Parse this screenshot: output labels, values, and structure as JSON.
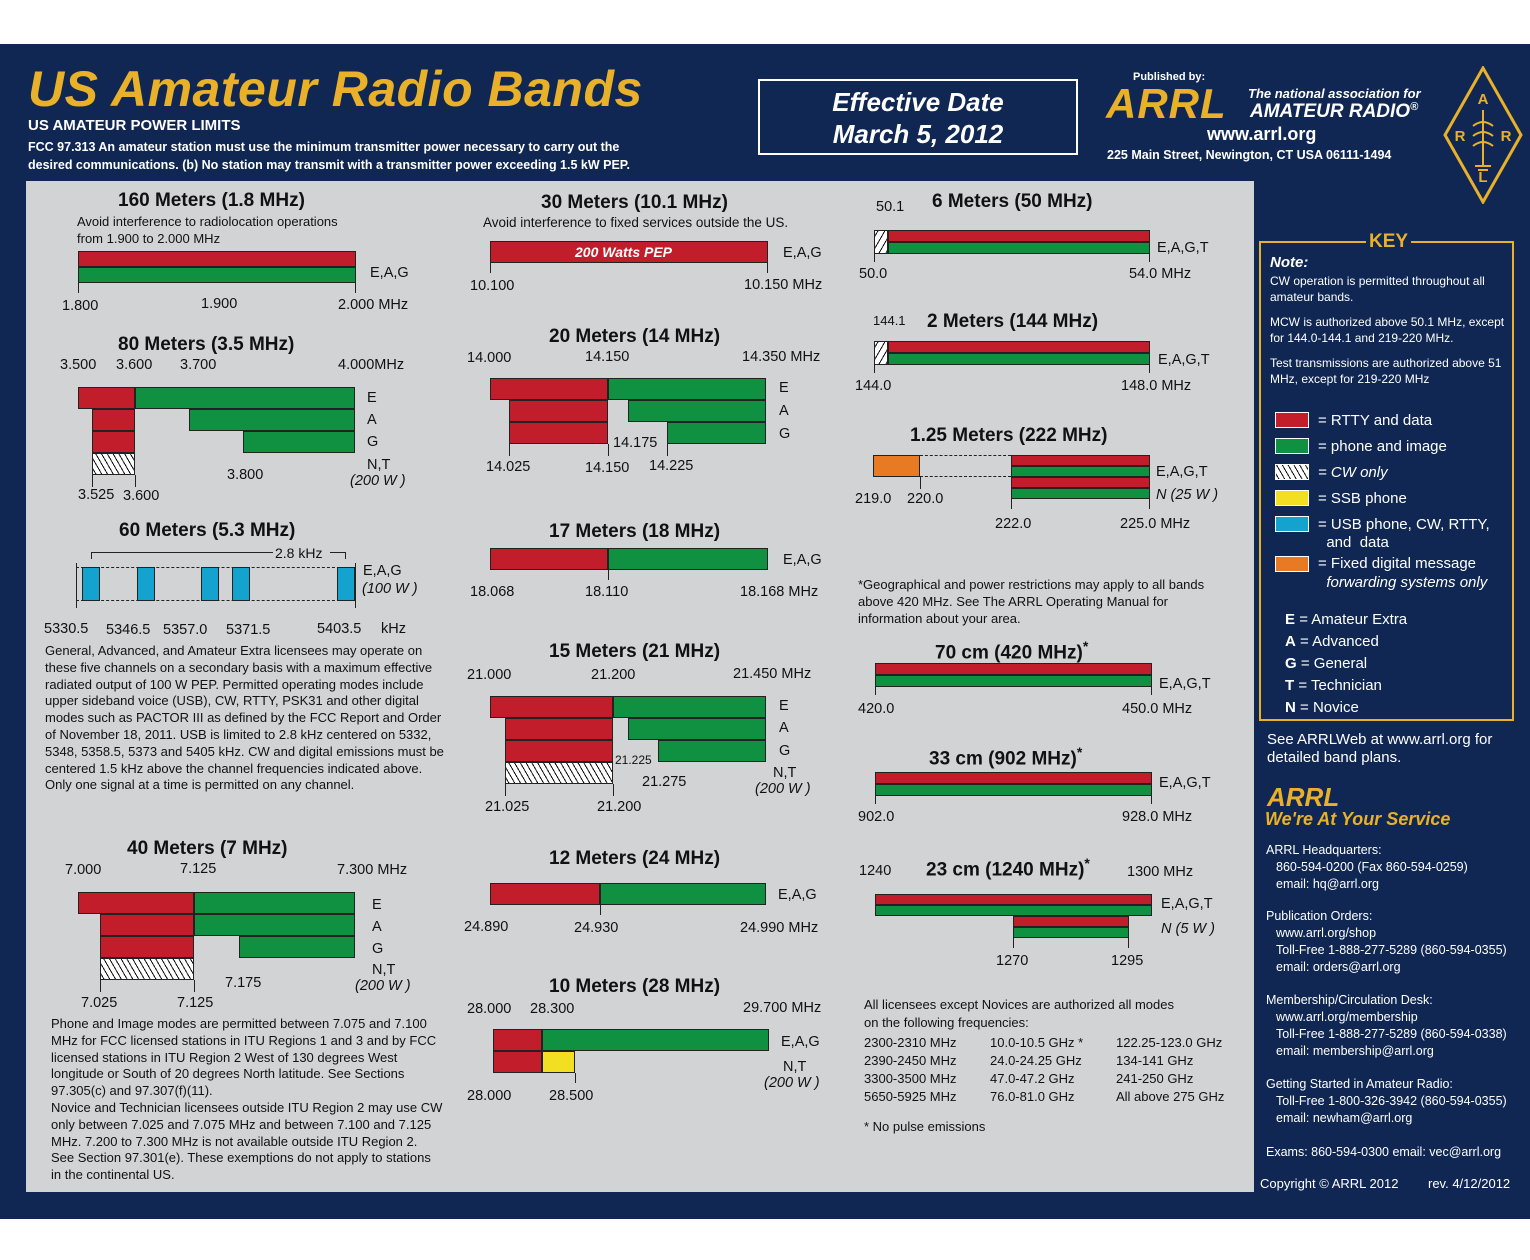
{
  "header": {
    "title": "US Amateur Radio Bands",
    "power_title": "US AMATEUR POWER LIMITS",
    "fcc_line1": "FCC 97.313   An amateur station must use the minimum transmitter power necessary to carry out the",
    "fcc_line2": "desired communications.   (b) No station may transmit with a transmitter power exceeding 1.5 kW PEP.",
    "effective_label": "Effective Date",
    "effective_date": "March 5, 2012",
    "published_by": "Published by:",
    "logo": "ARRL",
    "tagline1": "The national association for",
    "tagline2": "AMATEUR RADIO",
    "reg": "®",
    "url": "www.arrl.org",
    "address": "225 Main Street, Newington, CT  USA  06111-1494",
    "diamond_letters": [
      "A",
      "R",
      "R",
      "L"
    ]
  },
  "colors": {
    "navy": "#0f2752",
    "gold": "#e9b12a",
    "red": "#c11d2b",
    "green": "#0f9141",
    "orange": "#e77a22",
    "yellow": "#f2df22",
    "cyan": "#14a3cf",
    "panel": "#d2d3d5"
  },
  "bands": {
    "b160": {
      "title": "160 Meters (1.8 MHz)",
      "note1": "Avoid interference to radiolocation operations",
      "note2": "from 1.900 to 2.000 MHz",
      "lic": "E,A,G",
      "f1": "1.800",
      "f2": "1.900",
      "f3": "2.000",
      "unit": "MHz"
    },
    "b80": {
      "title": "80 Meters (3.5 MHz)",
      "f1": "3.500",
      "f2": "3.600",
      "f3": "3.700",
      "f4": "4.000",
      "unit": "MHz",
      "e": "E",
      "a": "A",
      "g": "G",
      "nt": "N,T",
      "nt_pow": "(200 W )",
      "b1": "3.800",
      "b2": "3.525",
      "b3": "3.600"
    },
    "b60": {
      "title": "60 Meters (5.3 MHz)",
      "bw": "2.8 kHz",
      "lic": "E,A,G",
      "pow": "(100 W )",
      "c1": "5330.5",
      "c2": "5346.5",
      "c3": "5357.0",
      "c4": "5371.5",
      "c5": "5403.5",
      "unit": "kHz",
      "text": "General, Advanced, and Amateur Extra licensees may operate on these five channels on a secondary basis with a maximum effective radiated output of 100 W PEP. Permitted operating modes include upper sideband voice (USB), CW, RTTY, PSK31 and other digital modes such as PACTOR III as defined by the FCC Report and Order of November 18, 2011. USB is limited to 2.8 kHz centered on 5332, 5348, 5358.5, 5373 and 5405 kHz. CW and digital emissions must be centered 1.5 kHz above the channel frequencies indicated above. Only one signal at a time is permitted on any channel."
    },
    "b40": {
      "title": "40 Meters (7 MHz)",
      "f1": "7.000",
      "f2": "7.125",
      "f3": "7.300",
      "unit": "MHz",
      "e": "E",
      "a": "A",
      "g": "G",
      "nt": "N,T",
      "nt_pow": "(200 W )",
      "b1": "7.175",
      "b2": "7.025",
      "b3": "7.125",
      "text1": "Phone and Image modes are permitted between 7.075 and 7.100 MHz for FCC licensed stations in ITU Regions 1 and 3 and by FCC licensed stations in ITU Region 2 West of 130 degrees West longitude or South of 20 degrees North latitude. See Sections 97.305(c) and 97.307(f)(11).",
      "text2": "Novice and Technician  licensees outside ITU Region 2 may use CW only between 7.025 and 7.075 MHz and between 7.100 and 7.125 MHz. 7.200 to 7.300 MHz is not available outside ITU Region 2. See Section 97.301(e). These exemptions do not apply to stations in the continental US."
    },
    "b30": {
      "title": "30 Meters (10.1 MHz)",
      "note": "Avoid interference to fixed services outside the US.",
      "pep": "200 Watts PEP",
      "lic": "E,A,G",
      "f1": "10.100",
      "f2": "10.150",
      "unit": "MHz"
    },
    "b20": {
      "title": "20 Meters (14 MHz)",
      "f1": "14.000",
      "f2": "14.150",
      "f3": "14.350",
      "unit": "MHz",
      "e": "E",
      "a": "A",
      "g": "G",
      "m": "14.175",
      "b1": "14.025",
      "b2": "14.150",
      "b3": "14.225"
    },
    "b17": {
      "title": "17 Meters (18 MHz)",
      "lic": "E,A,G",
      "f1": "18.068",
      "f2": "18.110",
      "f3": "18.168",
      "unit": "MHz"
    },
    "b15": {
      "title": "15 Meters (21 MHz)",
      "f1": "21.000",
      "f2": "21.200",
      "f3": "21.450",
      "unit": "MHz",
      "e": "E",
      "a": "A",
      "g": "G",
      "nt": "N,T",
      "nt_pow": "(200 W )",
      "m1": "21.225",
      "m2": "21.275",
      "b1": "21.025",
      "b2": "21.200"
    },
    "b12": {
      "title": "12 Meters (24 MHz)",
      "lic": "E,A,G",
      "f1": "24.890",
      "f2": "24.930",
      "f3": "24.990",
      "unit": "MHz"
    },
    "b10": {
      "title": "10 Meters (28 MHz)",
      "f1": "28.000",
      "f2": "28.300",
      "f3": "29.700",
      "unit": "MHz",
      "lic": "E,A,G",
      "nt": "N,T",
      "nt_pow": "(200 W )",
      "b1": "28.000",
      "b2": "28.500"
    },
    "b6": {
      "title": "6 Meters (50 MHz)",
      "top": "50.1",
      "lic": "E,A,G,T",
      "f1": "50.0",
      "f2": "54.0",
      "unit": "MHz"
    },
    "b2": {
      "title": "2 Meters (144 MHz)",
      "top": "144.1",
      "lic": "E,A,G,T",
      "f1": "144.0",
      "f2": "148.0",
      "unit": "MHz"
    },
    "b125": {
      "title": "1.25 Meters (222 MHz)",
      "lic": "E,A,G,T",
      "n": "N (25 W )",
      "f1": "219.0",
      "f2": "220.0",
      "f3": "222.0",
      "f4": "225.0",
      "unit": "MHz"
    },
    "geo_note": "*Geographical and power restrictions may apply to all bands above 420 MHz. See The ARRL Operating Manual for information about your area.",
    "b70": {
      "title": "70 cm (420 MHz)",
      "star": "*",
      "lic": "E,A,G,T",
      "f1": "420.0",
      "f2": "450.0",
      "unit": "MHz"
    },
    "b33": {
      "title": "33 cm (902 MHz)",
      "star": "*",
      "lic": "E,A,G,T",
      "f1": "902.0",
      "f2": "928.0",
      "unit": "MHz"
    },
    "b23": {
      "title": "23 cm (1240 MHz)",
      "star": "*",
      "top1": "1240",
      "top2": "1300",
      "unit": "MHz",
      "lic": "E,A,G,T",
      "n": "N (5 W )",
      "b1": "1270",
      "b2": "1295"
    }
  },
  "all_modes": {
    "intro1": "All licensees except Novices are authorized all modes",
    "intro2": "on the following frequencies:",
    "col1": [
      "2300-2310 MHz",
      "2390-2450 MHz",
      "3300-3500 MHz",
      "5650-5925 MHz"
    ],
    "col2": [
      "10.0-10.5 GHz *",
      "24.0-24.25 GHz",
      "47.0-47.2 GHz",
      "76.0-81.0 GHz"
    ],
    "col3": [
      "122.25-123.0 GHz",
      "134-141 GHz",
      "241-250 GHz",
      "All above 275 GHz"
    ],
    "footnote": "* No pulse emissions"
  },
  "key": {
    "title": "KEY",
    "note_label": "Note:",
    "note1": "CW operation is permitted throughout all amateur bands.",
    "note2": "MCW is authorized above 50.1 MHz, except for 144.0-144.1 and 219-220 MHz.",
    "note3": "Test transmissions are authorized above 51 MHz, except for 219-220 MHz",
    "legend": [
      "= RTTY and data",
      "= phone and image",
      "= CW only",
      "= SSB phone",
      "= USB phone, CW, RTTY,",
      "  and  data",
      "= Fixed digital message",
      "  forwarding systems only"
    ],
    "classes": [
      [
        "E",
        "= Amateur Extra"
      ],
      [
        "A",
        "= Advanced"
      ],
      [
        "G",
        "= General"
      ],
      [
        "T",
        "= Technician"
      ],
      [
        "N",
        "= Novice"
      ]
    ]
  },
  "sidebar": {
    "see": "See ARRLWeb at www.arrl.org for",
    "see2": "detailed band plans.",
    "logo": "ARRL",
    "service": "We're At Your Service",
    "contacts": [
      [
        "ARRL Headquarters:",
        "860-594-0200  (Fax 860-594-0259)",
        "email:  hq@arrl.org"
      ],
      [
        "Publication Orders:",
        "www.arrl.org/shop",
        "Toll-Free 1-888-277-5289 (860-594-0355)",
        "email: orders@arrl.org"
      ],
      [
        "Membership/Circulation Desk:",
        "www.arrl.org/membership",
        "Toll-Free 1-888-277-5289 (860-594-0338)",
        "email: membership@arrl.org"
      ],
      [
        "Getting Started in Amateur Radio:",
        "Toll-Free 1-800-326-3942 (860-594-0355)",
        "email: newham@arrl.org"
      ]
    ],
    "exams": "Exams:  860-594-0300   email: vec@arrl.org",
    "copyright": "Copyright © ARRL 2012",
    "rev": "rev. 4/12/2012"
  }
}
